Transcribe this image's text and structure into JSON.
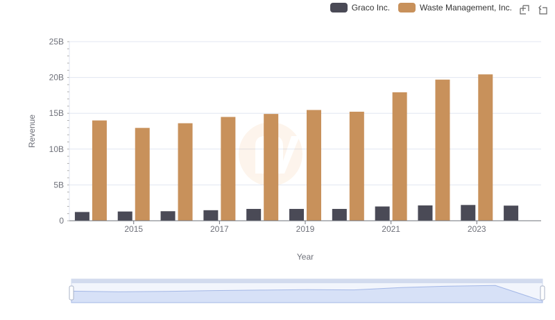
{
  "toolbox": {
    "icons": [
      "zoom-icon",
      "restore-icon"
    ]
  },
  "chart_data": {
    "type": "bar",
    "xlabel": "Year",
    "ylabel": "Revenue",
    "ylim": [
      0,
      25000000000
    ],
    "yticks": [
      "0",
      "5B",
      "10B",
      "15B",
      "20B",
      "25B"
    ],
    "x": [
      2014,
      2015,
      2016,
      2017,
      2018,
      2019,
      2020,
      2021,
      2022,
      2023,
      2024
    ],
    "xtick_labels": [
      "2015",
      "2017",
      "2019",
      "2021",
      "2023"
    ],
    "grid": true,
    "legend_position": "top-right",
    "series": [
      {
        "name": "Graco Inc.",
        "color": "#4a4a56",
        "values": [
          1220000000,
          1290000000,
          1330000000,
          1470000000,
          1650000000,
          1650000000,
          1650000000,
          1990000000,
          2140000000,
          2200000000,
          2110000000
        ]
      },
      {
        "name": "Waste Management, Inc.",
        "color": "#c8915b",
        "values": [
          14000000000,
          12960000000,
          13610000000,
          14490000000,
          14910000000,
          15460000000,
          15220000000,
          17930000000,
          19700000000,
          20430000000,
          null
        ]
      }
    ]
  }
}
